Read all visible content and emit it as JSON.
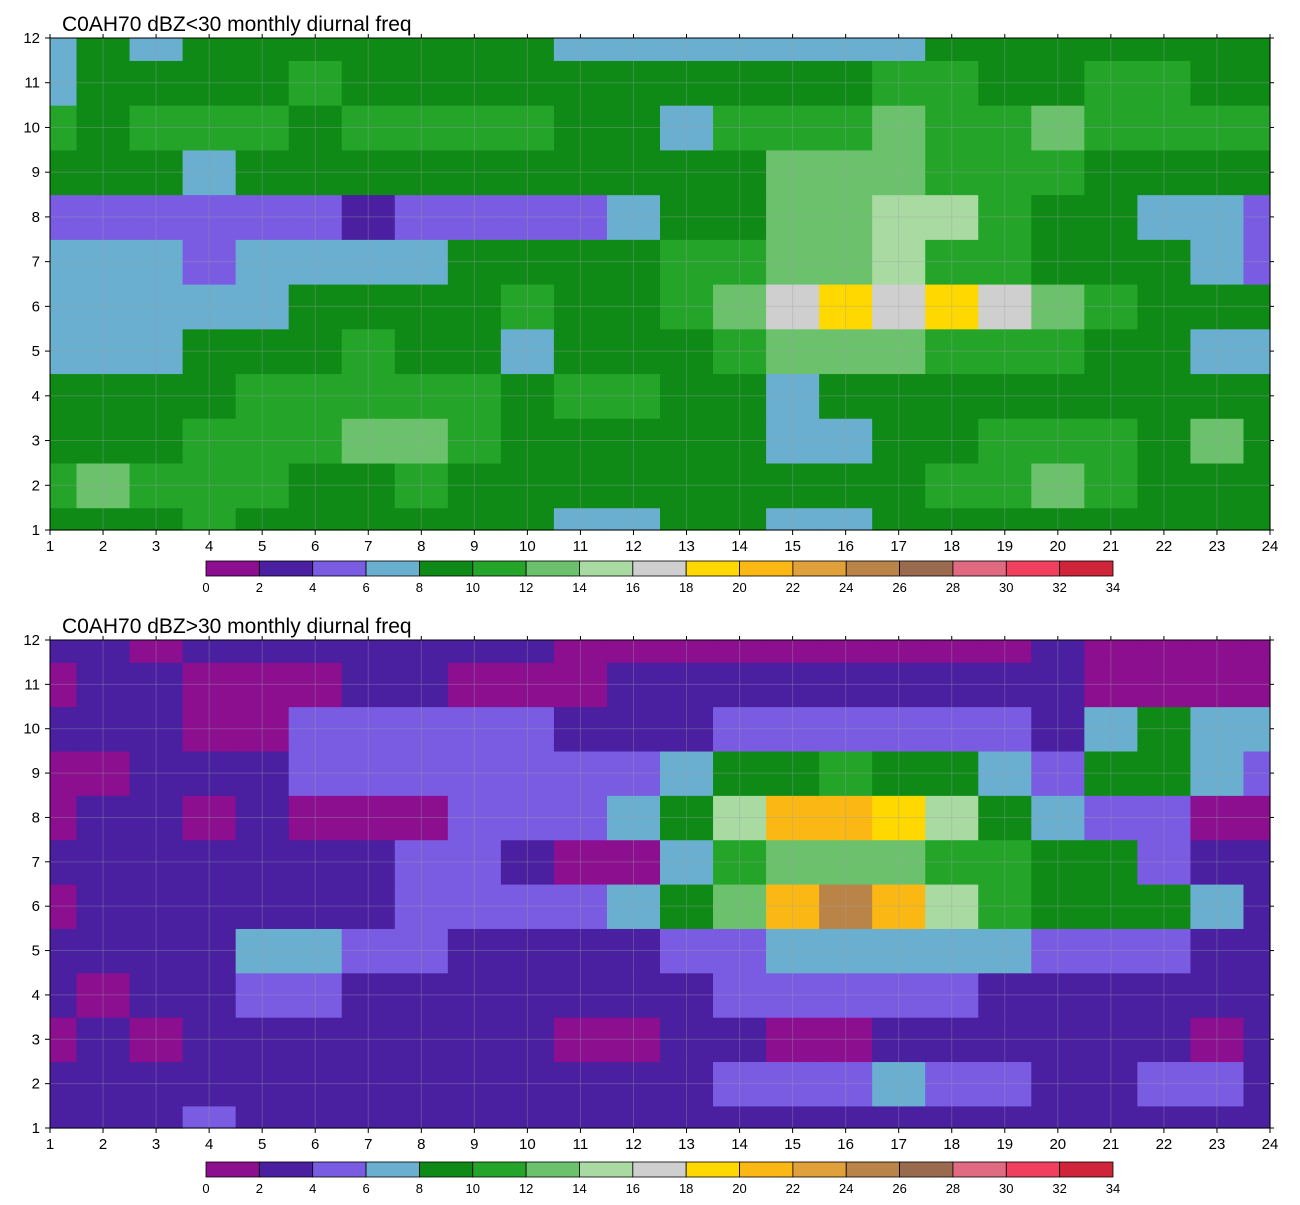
{
  "palette": [
    "#8b0f8f",
    "#4a1fa0",
    "#7a5ce3",
    "#6aaed0",
    "#108a16",
    "#24a52a",
    "#6cc26c",
    "#a9daa2",
    "#cfcfcf",
    "#ffd800",
    "#fbb814",
    "#e0a13a",
    "#ba8448",
    "#9a6a4f",
    "#e06a82",
    "#f0405e",
    "#d0243a"
  ],
  "contour_line_color": "#f0a830",
  "chart_data": [
    {
      "type": "heatmap",
      "title": "C0AH70 dBZ<30 monthly diurnal freq",
      "xlim": [
        1,
        24
      ],
      "ylim": [
        1,
        12
      ],
      "x_ticks": [
        "1",
        "2",
        "3",
        "4",
        "5",
        "6",
        "7",
        "8",
        "9",
        "10",
        "11",
        "12",
        "13",
        "14",
        "15",
        "16",
        "17",
        "18",
        "19",
        "20",
        "21",
        "22",
        "23",
        "24"
      ],
      "y_ticks": [
        "1",
        "2",
        "3",
        "4",
        "5",
        "6",
        "7",
        "8",
        "9",
        "10",
        "11",
        "12"
      ],
      "grid": true,
      "colorbar": {
        "placement": "bottom",
        "levels": [
          "0",
          "2",
          "4",
          "6",
          "8",
          "10",
          "12",
          "14",
          "16",
          "18",
          "20",
          "22",
          "24",
          "26",
          "28",
          "30",
          "32",
          "34"
        ]
      },
      "z": [
        [
          8,
          9,
          9,
          10,
          8,
          8,
          8,
          8,
          8,
          8,
          7,
          7,
          8,
          8,
          7,
          7,
          8,
          8,
          9,
          9,
          8,
          8,
          8,
          8
        ],
        [
          10,
          12,
          11,
          10,
          10,
          9,
          9,
          10,
          9,
          8,
          8,
          8,
          9,
          8,
          8,
          9,
          9,
          10,
          10,
          12,
          10,
          8,
          9,
          8
        ],
        [
          9,
          9,
          8,
          10,
          11,
          11,
          12,
          12,
          11,
          8,
          8,
          8,
          8,
          8,
          7,
          7,
          8,
          8,
          10,
          11,
          10,
          8,
          12,
          9
        ],
        [
          9,
          9,
          9,
          8,
          11,
          11,
          11,
          11,
          10,
          8,
          10,
          10,
          8,
          8,
          7,
          8,
          9,
          9,
          9,
          9,
          9,
          8,
          8,
          8
        ],
        [
          6,
          7,
          7,
          8,
          8,
          9,
          10,
          8,
          8,
          7,
          9,
          9,
          9,
          10,
          12,
          13,
          12,
          11,
          10,
          10,
          9,
          8,
          7,
          7
        ],
        [
          6,
          7,
          7,
          7,
          7,
          9,
          8,
          9,
          9,
          10,
          9,
          8,
          10,
          12,
          16,
          18,
          16,
          19,
          17,
          13,
          11,
          9,
          8,
          8
        ],
        [
          7,
          6,
          6,
          5,
          7,
          7,
          7,
          6,
          8,
          9,
          8,
          9,
          10,
          11,
          13,
          13,
          14,
          11,
          10,
          9,
          8,
          8,
          7,
          5
        ],
        [
          5,
          4,
          4,
          5,
          5,
          4,
          3,
          4,
          4,
          4,
          5,
          7,
          8,
          9,
          12,
          12,
          14,
          15,
          11,
          8,
          8,
          7,
          6,
          5
        ],
        [
          8,
          8,
          8,
          7,
          8,
          8,
          9,
          8,
          8,
          8,
          8,
          8,
          8,
          9,
          12,
          13,
          12,
          11,
          10,
          10,
          9,
          8,
          8,
          9
        ],
        [
          10,
          9,
          10,
          11,
          10,
          8,
          10,
          10,
          11,
          10,
          8,
          8,
          7,
          11,
          10,
          11,
          12,
          10,
          11,
          12,
          11,
          11,
          10,
          10
        ],
        [
          7,
          8,
          9,
          8,
          8,
          10,
          9,
          8,
          8,
          8,
          8,
          8,
          8,
          8,
          9,
          9,
          10,
          10,
          9,
          9,
          10,
          10,
          8,
          8
        ],
        [
          7,
          8,
          7,
          8,
          8,
          8,
          8,
          8,
          8,
          8,
          6,
          6,
          6,
          7,
          7,
          6,
          7,
          8,
          8,
          8,
          8,
          8,
          8,
          8
        ]
      ]
    },
    {
      "type": "heatmap",
      "title": "C0AH70 dBZ>30 monthly diurnal freq",
      "xlim": [
        1,
        24
      ],
      "ylim": [
        1,
        12
      ],
      "x_ticks": [
        "1",
        "2",
        "3",
        "4",
        "5",
        "6",
        "7",
        "8",
        "9",
        "10",
        "11",
        "12",
        "13",
        "14",
        "15",
        "16",
        "17",
        "18",
        "19",
        "20",
        "21",
        "22",
        "23",
        "24"
      ],
      "y_ticks": [
        "1",
        "2",
        "3",
        "4",
        "5",
        "6",
        "7",
        "8",
        "9",
        "10",
        "11",
        "12"
      ],
      "grid": true,
      "colorbar": {
        "placement": "bottom",
        "levels": [
          "0",
          "2",
          "4",
          "6",
          "8",
          "10",
          "12",
          "14",
          "16",
          "18",
          "20",
          "22",
          "24",
          "26",
          "28",
          "30",
          "32",
          "34"
        ]
      },
      "z": [
        [
          3,
          2,
          3,
          5,
          3,
          3,
          3,
          3,
          3,
          3,
          3,
          3,
          3,
          3,
          3,
          3,
          3,
          3,
          3,
          3,
          3,
          3,
          3,
          3
        ],
        [
          3,
          3,
          3,
          3,
          3,
          3,
          3,
          3,
          3,
          3,
          3,
          3,
          3,
          4,
          4,
          5,
          6,
          4,
          4,
          3,
          3,
          4,
          4,
          3
        ],
        [
          1,
          3,
          1,
          3,
          3,
          3,
          3,
          3,
          3,
          3,
          1,
          1,
          3,
          3,
          1,
          1,
          3,
          3,
          3,
          3,
          3,
          3,
          1,
          3
        ],
        [
          3,
          1,
          3,
          3,
          5,
          5,
          3,
          3,
          3,
          3,
          3,
          3,
          3,
          5,
          5,
          5,
          4,
          4,
          3,
          3,
          3,
          3,
          3,
          3
        ],
        [
          3,
          3,
          3,
          3,
          6,
          6,
          4,
          4,
          3,
          3,
          3,
          3,
          5,
          5,
          6,
          6,
          7,
          6,
          6,
          5,
          5,
          5,
          3,
          3
        ],
        [
          1,
          2,
          3,
          3,
          3,
          3,
          3,
          5,
          4,
          5,
          4,
          6,
          8,
          12,
          20,
          25,
          21,
          15,
          11,
          9,
          9,
          8,
          6,
          3
        ],
        [
          3,
          2,
          3,
          3,
          3,
          3,
          3,
          5,
          5,
          3,
          1,
          1,
          6,
          10,
          13,
          13,
          13,
          11,
          10,
          9,
          9,
          5,
          3,
          3
        ],
        [
          1,
          3,
          3,
          1,
          3,
          1,
          1,
          1,
          5,
          5,
          5,
          6,
          9,
          14,
          20,
          21,
          19,
          14,
          9,
          7,
          5,
          5,
          1,
          1
        ],
        [
          1,
          1,
          2,
          3,
          3,
          5,
          5,
          5,
          5,
          5,
          5,
          5,
          6,
          8,
          9,
          10,
          9,
          8,
          6,
          5,
          8,
          9,
          6,
          5
        ],
        [
          3,
          3,
          3,
          1,
          1,
          5,
          5,
          5,
          5,
          5,
          3,
          3,
          3,
          5,
          5,
          5,
          5,
          5,
          5,
          3,
          6,
          8,
          6,
          6
        ],
        [
          1,
          3,
          3,
          1,
          1,
          1,
          3,
          3,
          1,
          1,
          1,
          3,
          3,
          3,
          3,
          3,
          3,
          3,
          3,
          3,
          1,
          1,
          1,
          1
        ],
        [
          3,
          3,
          1,
          3,
          3,
          3,
          3,
          3,
          3,
          3,
          1,
          1,
          1,
          1,
          1,
          1,
          1,
          1,
          1,
          3,
          1,
          1,
          1,
          1
        ]
      ]
    }
  ]
}
